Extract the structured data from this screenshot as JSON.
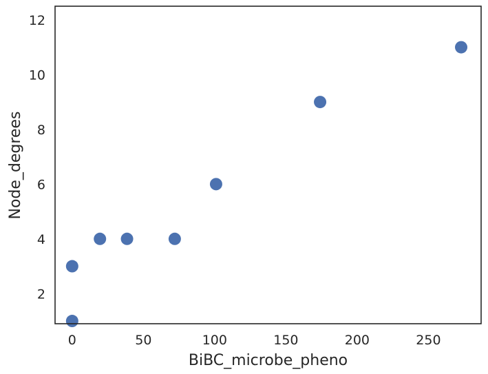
{
  "chart_data": {
    "type": "scatter",
    "xlabel": "BiBC_microbe_pheno",
    "ylabel": "Node_degrees",
    "xlim": [
      -12,
      287
    ],
    "ylim": [
      0.9,
      12.5
    ],
    "xticks": [
      0,
      50,
      100,
      150,
      200,
      250
    ],
    "yticks": [
      2,
      4,
      6,
      8,
      10,
      12
    ],
    "grid": false,
    "marker_color": "#4c72b0",
    "points": [
      {
        "x": 0,
        "y": 1
      },
      {
        "x": 0,
        "y": 3
      },
      {
        "x": 19.5,
        "y": 4
      },
      {
        "x": 38.5,
        "y": 4
      },
      {
        "x": 72,
        "y": 4
      },
      {
        "x": 101,
        "y": 6
      },
      {
        "x": 174,
        "y": 9
      },
      {
        "x": 273,
        "y": 11
      }
    ]
  }
}
